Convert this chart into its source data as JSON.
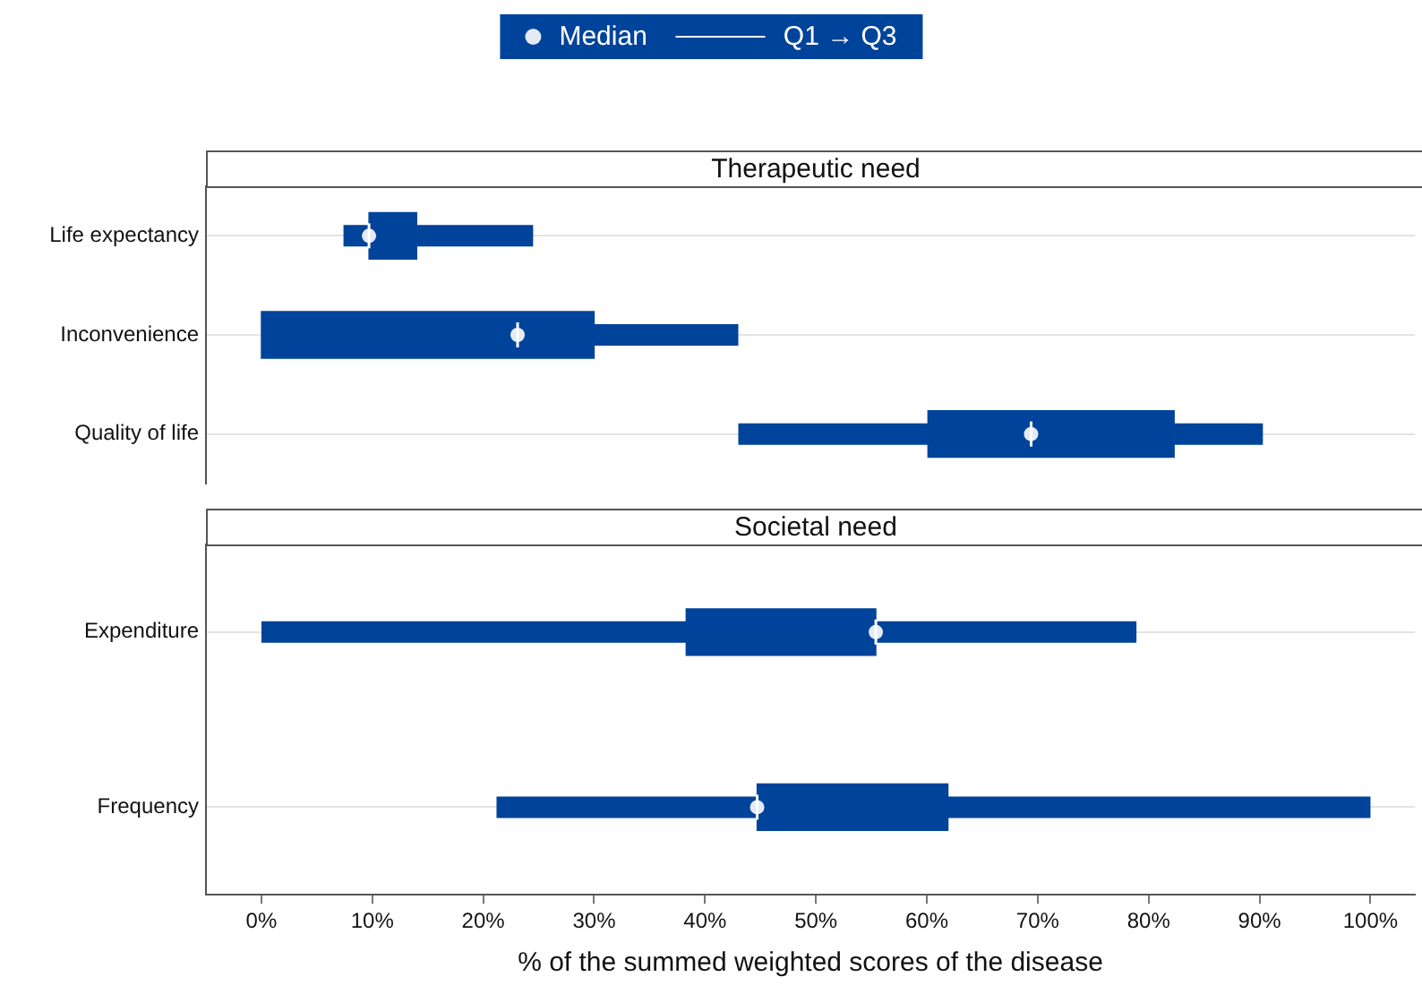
{
  "chart_data": [
    {
      "type": "box",
      "title": "Therapeutic need",
      "orientation": "horizontal",
      "categories": [
        "Life expectancy",
        "Inconvenience",
        "Quality of life"
      ],
      "series": [
        {
          "type": "scatter",
          "name": "Median",
          "color": "#e4eaf4",
          "marker": "circle",
          "x": [
            "Life expectancy",
            "Inconvenience",
            "Quality of life"
          ],
          "values": [
            9.7,
            23.1,
            69.4
          ]
        },
        {
          "name": "Q1 → Q3",
          "color": "#00439a",
          "boxes": [
            {
              "low": 7.4,
              "q1": 9.7,
              "median": 9.7,
              "q3": 14.0,
              "high": 24.5
            },
            {
              "low": 0,
              "q1": 0,
              "median": 23.1,
              "q3": 30.0,
              "high": 43.0
            },
            {
              "low": 43.0,
              "q1": 60.1,
              "median": 69.4,
              "q3": 82.3,
              "high": 90.3
            }
          ]
        }
      ],
      "xlim": [
        -5,
        104
      ],
      "tick_labels": "y",
      "grid": "y",
      "legend": "top"
    },
    {
      "type": "box",
      "title": "Societal need",
      "orientation": "horizontal",
      "categories": [
        "Expenditure",
        "Frequency"
      ],
      "xlabel": "% of the summed weighted scores of the disease",
      "series": [
        {
          "type": "scatter",
          "color": "#e4eaf4",
          "marker": "circle",
          "x": [
            "Expenditure",
            "Frequency"
          ],
          "values": [
            55.4,
            44.7
          ]
        },
        {
          "color": "#00439a",
          "boxes": [
            {
              "low": 0,
              "q1": 38.3,
              "median": 55.4,
              "q3": 55.4,
              "high": 78.9
            },
            {
              "low": 21.2,
              "q1": 44.7,
              "median": 44.7,
              "q3": 61.9,
              "high": 100
            }
          ]
        }
      ],
      "xlim": [
        -5,
        104
      ],
      "xticks": [
        {
          "value": 0,
          "label": "0%"
        },
        {
          "value": 10,
          "label": "10%"
        },
        {
          "value": 20,
          "label": "20%"
        },
        {
          "value": 30,
          "label": "30%"
        },
        {
          "value": 40,
          "label": "40%"
        },
        {
          "value": 50,
          "label": "50%"
        },
        {
          "value": 60,
          "label": "60%"
        },
        {
          "value": 70,
          "label": "70%"
        },
        {
          "value": 80,
          "label": "80%"
        },
        {
          "value": 90,
          "label": "90%"
        },
        {
          "value": 100,
          "label": "100%"
        }
      ],
      "grid": "y"
    }
  ]
}
